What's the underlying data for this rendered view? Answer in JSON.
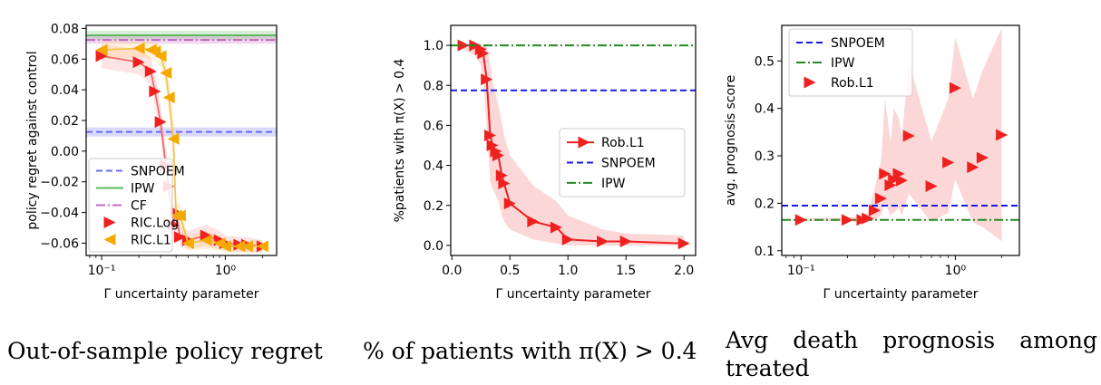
{
  "captions": [
    "Out-of-sample policy regret",
    "% of patients with π(X) > 0.4",
    "Avg death prognosis among treated"
  ],
  "chart_data": [
    {
      "type": "line",
      "xscale": "log",
      "xlabel": "Γ uncertainty parameter",
      "ylabel": "policy regret against control",
      "xlim": [
        0.075,
        2.6
      ],
      "ylim": [
        -0.068,
        0.082
      ],
      "xticks": [
        {
          "v": 0.1,
          "label": "10⁻¹"
        },
        {
          "v": 1,
          "label": "10⁰"
        }
      ],
      "yticks": [
        {
          "v": 0.08,
          "label": "0.08"
        },
        {
          "v": 0.06,
          "label": "0.06"
        },
        {
          "v": 0.04,
          "label": "0.04"
        },
        {
          "v": 0.02,
          "label": "0.02"
        },
        {
          "v": 0.0,
          "label": "0.00"
        },
        {
          "v": -0.02,
          "label": "−0.02"
        },
        {
          "v": -0.04,
          "label": "−0.04"
        },
        {
          "v": -0.06,
          "label": "−0.06"
        }
      ],
      "legend_position": "lower-left",
      "series": [
        {
          "name": "SNPOEM",
          "style": "hline-dashed",
          "color": "#6b6bf5",
          "y": 0.0125,
          "band": [
            0.0095,
            0.0155
          ]
        },
        {
          "name": "IPW",
          "style": "hline-solid",
          "color": "#5fb85f",
          "y": 0.0755,
          "band": [
            0.0725,
            0.0785
          ]
        },
        {
          "name": "CF",
          "style": "hline-dashdot",
          "color": "#c468c4",
          "y": 0.0725,
          "band": [
            0.07,
            0.075
          ]
        },
        {
          "name": "RIC.Log",
          "style": "markers-right",
          "color": "#ee2020",
          "line_color": "#f26a6a",
          "x": [
            0.1,
            0.2,
            0.25,
            0.27,
            0.3,
            0.33,
            0.35,
            0.38,
            0.4,
            0.43,
            0.5,
            0.7,
            0.9,
            1.0,
            1.3,
            1.5,
            2.0
          ],
          "y": [
            0.062,
            0.058,
            0.052,
            0.039,
            0.019,
            -0.009,
            -0.023,
            -0.048,
            -0.04,
            -0.056,
            -0.058,
            -0.055,
            -0.058,
            -0.06,
            -0.061,
            -0.061,
            -0.062
          ],
          "band_low": [
            0.054,
            0.05,
            0.043,
            0.028,
            0.008,
            -0.02,
            -0.034,
            -0.056,
            -0.05,
            -0.062,
            -0.064,
            -0.062,
            -0.064,
            -0.065,
            -0.066,
            -0.066,
            -0.066
          ],
          "band_high": [
            0.07,
            0.066,
            0.061,
            0.05,
            0.03,
            0.002,
            -0.012,
            -0.038,
            -0.03,
            -0.049,
            -0.052,
            -0.048,
            -0.052,
            -0.055,
            -0.056,
            -0.056,
            -0.058
          ]
        },
        {
          "name": "RIC.L1",
          "style": "markers-left",
          "color": "#f5a800",
          "line_color": "#f7c24a",
          "x": [
            0.1,
            0.2,
            0.25,
            0.27,
            0.3,
            0.33,
            0.35,
            0.38,
            0.4,
            0.43,
            0.5,
            0.7,
            0.9,
            1.0,
            1.3,
            1.5,
            2.0
          ],
          "y": [
            0.066,
            0.067,
            0.066,
            0.065,
            0.062,
            0.051,
            0.035,
            0.008,
            -0.042,
            -0.042,
            -0.06,
            -0.058,
            -0.06,
            -0.062,
            -0.062,
            -0.062,
            -0.062
          ],
          "band_low": [
            0.06,
            0.061,
            0.06,
            0.059,
            0.055,
            0.042,
            0.024,
            -0.006,
            -0.05,
            -0.05,
            -0.065,
            -0.064,
            -0.065,
            -0.066,
            -0.066,
            -0.066,
            -0.066
          ],
          "band_high": [
            0.072,
            0.073,
            0.072,
            0.071,
            0.069,
            0.06,
            0.046,
            0.022,
            -0.034,
            -0.034,
            -0.055,
            -0.052,
            -0.055,
            -0.058,
            -0.058,
            -0.058,
            -0.058
          ]
        }
      ]
    },
    {
      "type": "line",
      "xscale": "linear",
      "xlabel": "Γ uncertainty parameter",
      "ylabel": "%patients with π(X) > 0.4",
      "xlim": [
        -0.01,
        2.1
      ],
      "ylim": [
        -0.05,
        1.1
      ],
      "xticks": [
        {
          "v": 0.0,
          "label": "0.0"
        },
        {
          "v": 0.5,
          "label": "0.5"
        },
        {
          "v": 1.0,
          "label": "1.0"
        },
        {
          "v": 1.5,
          "label": "1.5"
        },
        {
          "v": 2.0,
          "label": "2.0"
        }
      ],
      "yticks": [
        {
          "v": 0.0,
          "label": "0.0"
        },
        {
          "v": 0.2,
          "label": "0.2"
        },
        {
          "v": 0.4,
          "label": "0.4"
        },
        {
          "v": 0.6,
          "label": "0.6"
        },
        {
          "v": 0.8,
          "label": "0.8"
        },
        {
          "v": 1.0,
          "label": "1.0"
        }
      ],
      "legend_position": "center-right",
      "series": [
        {
          "name": "Rob.L1",
          "style": "line-markers-right",
          "color": "#ee2020",
          "x": [
            0.1,
            0.2,
            0.25,
            0.27,
            0.3,
            0.33,
            0.35,
            0.38,
            0.4,
            0.43,
            0.45,
            0.5,
            0.7,
            0.9,
            1.0,
            1.3,
            1.5,
            2.0
          ],
          "y": [
            1.0,
            1.0,
            0.98,
            0.96,
            0.83,
            0.55,
            0.5,
            0.47,
            0.45,
            0.35,
            0.31,
            0.21,
            0.12,
            0.09,
            0.03,
            0.02,
            0.02,
            0.01
          ],
          "band_low": [
            0.98,
            0.95,
            0.9,
            0.82,
            0.6,
            0.32,
            0.28,
            0.25,
            0.22,
            0.15,
            0.12,
            0.08,
            0.03,
            0.01,
            0.0,
            0.0,
            0.0,
            0.0
          ],
          "band_high": [
            1.0,
            1.0,
            1.0,
            1.0,
            1.0,
            0.9,
            0.82,
            0.75,
            0.7,
            0.62,
            0.55,
            0.45,
            0.3,
            0.22,
            0.15,
            0.08,
            0.06,
            0.05
          ]
        },
        {
          "name": "SNPOEM",
          "style": "hline-dashed",
          "color": "#1a1ae6",
          "y": 0.775
        },
        {
          "name": "IPW",
          "style": "hline-dashdot",
          "color": "#228b22",
          "y": 1.0
        }
      ]
    },
    {
      "type": "scatter",
      "xscale": "log",
      "xlabel": "Γ uncertainty parameter",
      "ylabel": "avg. prognosis score",
      "xlim": [
        0.075,
        2.6
      ],
      "ylim": [
        0.09,
        0.575
      ],
      "xticks": [
        {
          "v": 0.1,
          "label": "10⁻¹"
        },
        {
          "v": 1,
          "label": "10⁰"
        }
      ],
      "yticks": [
        {
          "v": 0.1,
          "label": "0.1"
        },
        {
          "v": 0.2,
          "label": "0.2"
        },
        {
          "v": 0.3,
          "label": "0.3"
        },
        {
          "v": 0.4,
          "label": "0.4"
        },
        {
          "v": 0.5,
          "label": "0.5"
        }
      ],
      "legend_position": "top-left",
      "series": [
        {
          "name": "SNPOEM",
          "style": "hline-dashed",
          "color": "#1a1ae6",
          "y": 0.195
        },
        {
          "name": "IPW",
          "style": "hline-dashdot",
          "color": "#228b22",
          "y": 0.165
        },
        {
          "name": "Rob.L1",
          "style": "markers-right",
          "color": "#ee2020",
          "x": [
            0.1,
            0.2,
            0.25,
            0.27,
            0.3,
            0.33,
            0.35,
            0.38,
            0.4,
            0.43,
            0.45,
            0.5,
            0.7,
            0.9,
            1.0,
            1.3,
            1.5,
            2.0
          ],
          "y": [
            0.165,
            0.165,
            0.165,
            0.168,
            0.185,
            0.21,
            0.262,
            0.238,
            0.25,
            0.262,
            0.248,
            0.342,
            0.236,
            0.286,
            0.443,
            0.276,
            0.296,
            0.344
          ],
          "band_low": [
            0.163,
            0.162,
            0.16,
            0.16,
            0.165,
            0.175,
            0.2,
            0.175,
            0.18,
            0.19,
            0.175,
            0.22,
            0.16,
            0.18,
            0.25,
            0.16,
            0.15,
            0.12
          ],
          "band_high": [
            0.168,
            0.17,
            0.172,
            0.18,
            0.23,
            0.29,
            0.42,
            0.33,
            0.4,
            0.38,
            0.34,
            0.5,
            0.33,
            0.42,
            0.55,
            0.42,
            0.48,
            0.57
          ]
        }
      ]
    }
  ]
}
